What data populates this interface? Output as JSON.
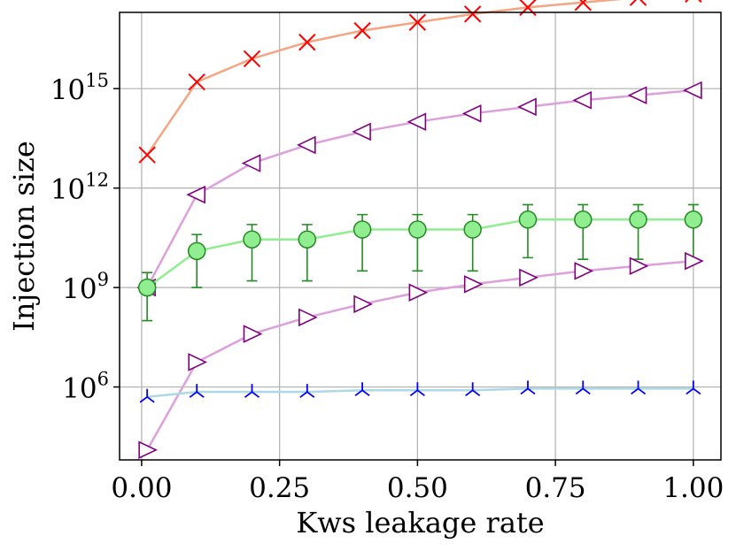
{
  "chart_data": {
    "type": "line",
    "title": "",
    "xlabel": "Kws leakage rate",
    "ylabel": "Injection size",
    "xlim": [
      -0.04,
      1.05
    ],
    "ylim_log10": [
      3.8,
      17.3
    ],
    "yscale": "log",
    "grid": true,
    "x": [
      0.01,
      0.1,
      0.2,
      0.3,
      0.4,
      0.5,
      0.6,
      0.7,
      0.8,
      0.9,
      1.0
    ],
    "xticks": [
      0.0,
      0.25,
      0.5,
      0.75,
      1.0
    ],
    "xtick_labels": [
      "0.00",
      "0.25",
      "0.50",
      "0.75",
      "1.00"
    ],
    "yticks_log10": [
      6,
      9,
      12,
      15
    ],
    "ytick_labels": [
      {
        "base": "10",
        "exp": "6"
      },
      {
        "base": "10",
        "exp": "9"
      },
      {
        "base": "10",
        "exp": "12"
      },
      {
        "base": "10",
        "exp": "15"
      }
    ],
    "series": [
      {
        "name": "x-marker",
        "marker": "x",
        "line_color": "#f4a582",
        "marker_color": "#ff0000",
        "log10_values": [
          13.0,
          15.2,
          15.9,
          16.4,
          16.75,
          17.0,
          17.25,
          17.45,
          17.6,
          17.75,
          17.85
        ]
      },
      {
        "name": "left-triangle",
        "marker": "triangle-left",
        "line_color": "#dda0dd",
        "marker_color": "#800080",
        "log10_values": [
          9.0,
          11.8,
          12.75,
          13.3,
          13.7,
          14.0,
          14.25,
          14.45,
          14.65,
          14.8,
          14.95
        ]
      },
      {
        "name": "circle-errorbar",
        "marker": "circle",
        "line_color": "#90ee90",
        "marker_color": "#90ee90",
        "marker_edge": "#228b22",
        "errorbar_color": "#228b22",
        "log10_values": [
          9.0,
          10.1,
          10.45,
          10.45,
          10.75,
          10.75,
          10.75,
          11.05,
          11.05,
          11.05,
          11.05
        ],
        "err_low": [
          8.0,
          9.0,
          9.2,
          9.2,
          9.5,
          9.5,
          9.5,
          9.9,
          9.85,
          9.85,
          9.85
        ],
        "err_high": [
          9.45,
          10.6,
          10.9,
          10.9,
          11.2,
          11.2,
          11.2,
          11.5,
          11.5,
          11.5,
          11.5
        ]
      },
      {
        "name": "right-triangle",
        "marker": "triangle-right",
        "line_color": "#dda0dd",
        "marker_color": "#800080",
        "log10_values": [
          4.1,
          6.75,
          7.6,
          8.1,
          8.5,
          8.85,
          9.1,
          9.3,
          9.5,
          9.65,
          9.8
        ]
      },
      {
        "name": "tri-down",
        "marker": "tri-down",
        "line_color": "#add8e6",
        "marker_color": "#0000ff",
        "log10_values": [
          5.7,
          5.85,
          5.85,
          5.85,
          5.9,
          5.9,
          5.9,
          5.95,
          5.95,
          5.95,
          5.95
        ]
      }
    ]
  }
}
